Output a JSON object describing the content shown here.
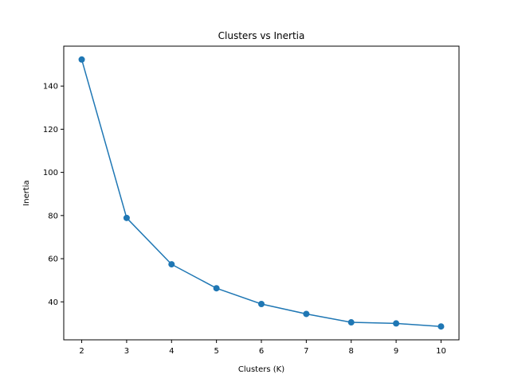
{
  "chart_data": {
    "type": "line",
    "title": "Clusters vs Inertia",
    "xlabel": "Clusters (K)",
    "ylabel": "Inertia",
    "x": [
      2,
      3,
      4,
      5,
      6,
      7,
      8,
      9,
      10
    ],
    "series": [
      {
        "values": [
          152.3,
          78.9,
          57.4,
          46.3,
          39.0,
          34.4,
          30.5,
          30.0,
          28.6
        ],
        "color": "#1f77b4"
      }
    ],
    "xticks": [
      2,
      3,
      4,
      5,
      6,
      7,
      8,
      9,
      10
    ],
    "yticks": [
      40,
      60,
      80,
      100,
      120,
      140
    ],
    "xlim": [
      1.6,
      10.4
    ],
    "ylim": [
      22.4,
      158.5
    ],
    "grid": false,
    "legend": "none"
  }
}
